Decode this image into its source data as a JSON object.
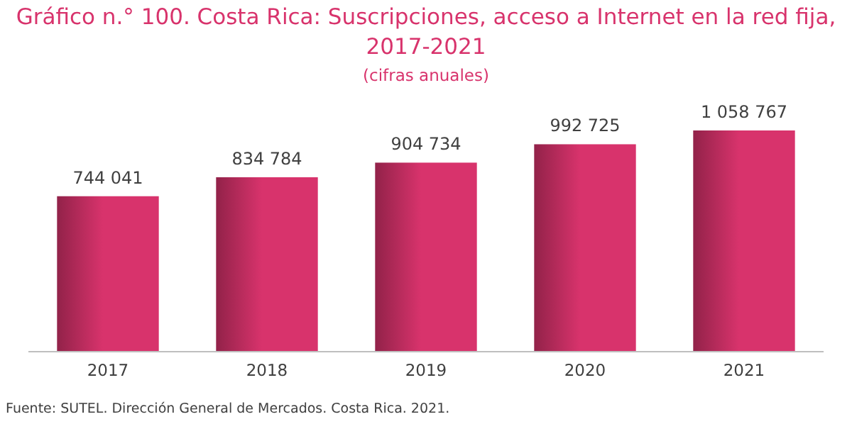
{
  "chart_data": {
    "type": "bar",
    "title": "Gráfico n.° 100. Costa Rica: Suscripciones, acceso a Internet en la red fija, 2017-2021",
    "subtitle": "(cifras anuales)",
    "categories": [
      "2017",
      "2018",
      "2019",
      "2020",
      "2021"
    ],
    "values": [
      744041,
      834784,
      904734,
      992725,
      1058767
    ],
    "value_labels": [
      "744 041",
      "834 784",
      "904 734",
      "992 725",
      "1 058 767"
    ],
    "color": "#d8336c",
    "grid": false,
    "annotations": [
      "Fuente: SUTEL. Dirección General de Mercados. Costa Rica. 2021."
    ]
  }
}
